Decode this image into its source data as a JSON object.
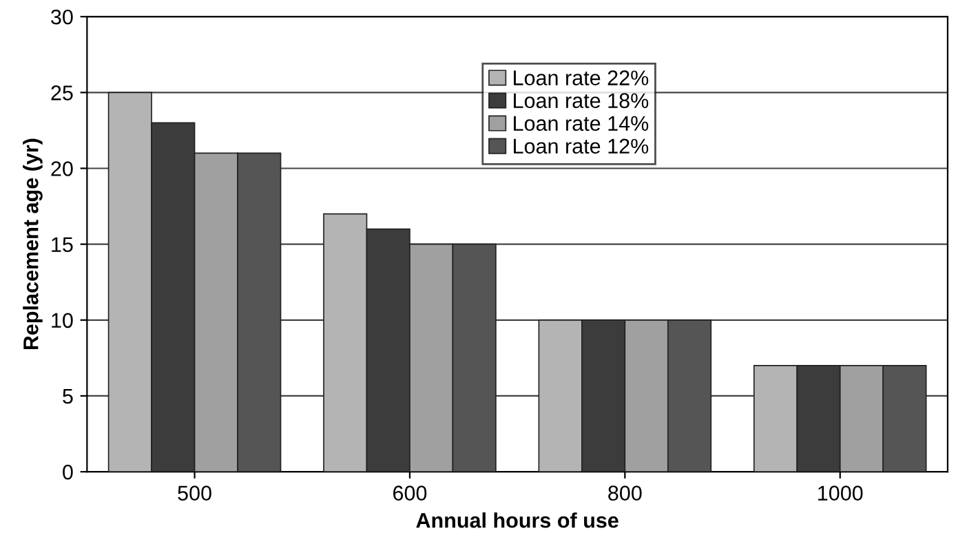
{
  "chart_data": {
    "type": "bar",
    "xlabel": "Annual hours of use",
    "ylabel": "Replacement age (yr)",
    "categories": [
      "500",
      "600",
      "800",
      "1000"
    ],
    "series": [
      {
        "name": "Loan rate 22%",
        "color": "#b4b4b4",
        "values": [
          25,
          17,
          10,
          7
        ]
      },
      {
        "name": "Loan rate 18%",
        "color": "#3c3c3c",
        "values": [
          23,
          16,
          10,
          7
        ]
      },
      {
        "name": "Loan rate 14%",
        "color": "#a0a0a0",
        "values": [
          21,
          15,
          10,
          7
        ]
      },
      {
        "name": "Loan rate 12%",
        "color": "#555555",
        "values": [
          21,
          15,
          10,
          7
        ]
      }
    ],
    "ylim": [
      0,
      30
    ],
    "yticks": [
      0,
      5,
      10,
      15,
      20,
      25,
      30
    ],
    "grid": "y",
    "legend": "top"
  }
}
